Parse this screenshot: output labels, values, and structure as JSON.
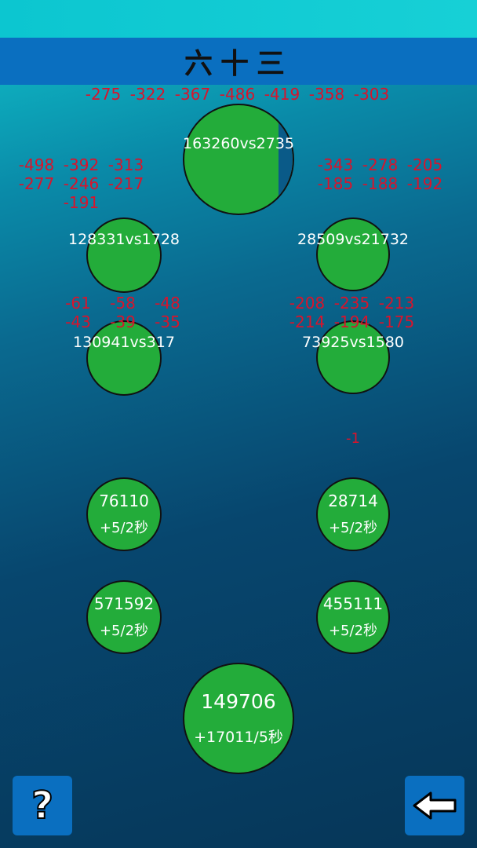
{
  "title": "六十三",
  "battles": [
    {
      "id": "top",
      "label": "163260vs2735",
      "damage": [
        "-275",
        "-322",
        "-367",
        "-486",
        "-419",
        "-358",
        "-303"
      ],
      "progress": 0.92
    },
    {
      "id": "left-1",
      "label": "128331vs1728",
      "damage": [
        "-498",
        "-392",
        "-313",
        "-277",
        "-246",
        "-217",
        "-191"
      ]
    },
    {
      "id": "right-1",
      "label": "28509vs21732",
      "damage": [
        "-343",
        "-278",
        "-205",
        "-185",
        "-188",
        "-192"
      ]
    },
    {
      "id": "left-2",
      "label": "130941vs317",
      "damage": [
        "-61",
        "-58",
        "-48",
        "-43",
        "-39",
        "-35"
      ]
    },
    {
      "id": "right-2",
      "label": "73925vs1580",
      "damage": [
        "-208",
        "-235",
        "-213",
        "-214",
        "-194",
        "-175"
      ]
    }
  ],
  "floating": "-1",
  "resources": [
    {
      "value": "76110",
      "rate": "+5/2秒"
    },
    {
      "value": "28714",
      "rate": "+5/2秒"
    },
    {
      "value": "571592",
      "rate": "+5/2秒"
    },
    {
      "value": "455111",
      "rate": "+5/2秒"
    }
  ],
  "main": {
    "value": "149706",
    "rate": "+17011/5秒"
  },
  "buttons": {
    "help": "?",
    "back": "back-arrow"
  },
  "colors": {
    "green": "#23ac3a",
    "header": "#0a6fc0",
    "damage": "#d8142c"
  }
}
